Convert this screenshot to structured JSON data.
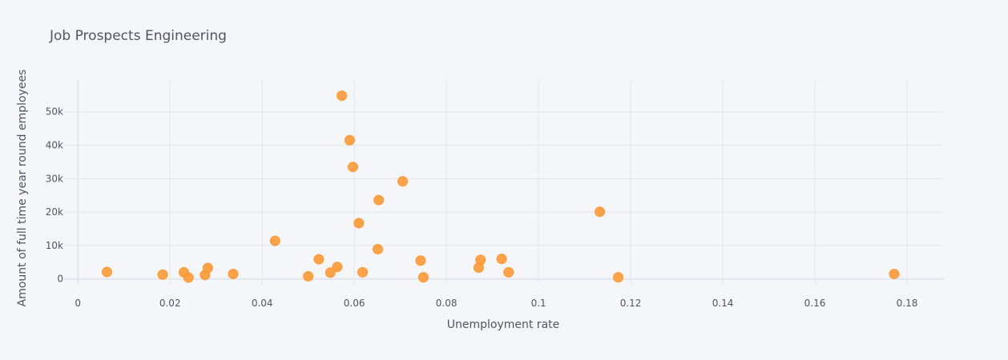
{
  "chart_data": {
    "type": "scatter",
    "title": "Job Prospects Engineering",
    "xlabel": "Unemployment rate",
    "ylabel": "Amount of full time year round employees",
    "xlim": [
      -0.003,
      0.188
    ],
    "ylim": [
      -1500,
      59500
    ],
    "xticks": [
      0,
      0.02,
      0.04,
      0.06,
      0.08,
      0.1,
      0.12,
      0.14,
      0.16,
      0.18
    ],
    "xtick_labels": [
      "0",
      "0.02",
      "0.04",
      "0.06",
      "0.08",
      "0.1",
      "0.12",
      "0.14",
      "0.16",
      "0.18"
    ],
    "yticks": [
      0,
      10000,
      20000,
      30000,
      40000,
      50000
    ],
    "ytick_labels": [
      "0",
      "10k",
      "20k",
      "30k",
      "40k",
      "50k"
    ],
    "grid": true,
    "marker_color": "#ff9933",
    "series": [
      {
        "x": [
          0.0063,
          0.0184,
          0.023,
          0.024,
          0.0276,
          0.0282,
          0.0337,
          0.0428,
          0.05,
          0.0523,
          0.0548,
          0.0563,
          0.0573,
          0.059,
          0.0597,
          0.061,
          0.0618,
          0.0651,
          0.0653,
          0.0705,
          0.0744,
          0.075,
          0.087,
          0.0874,
          0.092,
          0.0935,
          0.1133,
          0.1173,
          0.1772
        ],
        "y": [
          2100,
          1300,
          2000,
          400,
          1200,
          3300,
          1500,
          11400,
          800,
          5900,
          1900,
          3600,
          54800,
          41500,
          33500,
          16700,
          2000,
          8900,
          23600,
          29200,
          5500,
          500,
          3400,
          5700,
          6000,
          2000,
          20100,
          500,
          1500
        ]
      }
    ]
  }
}
